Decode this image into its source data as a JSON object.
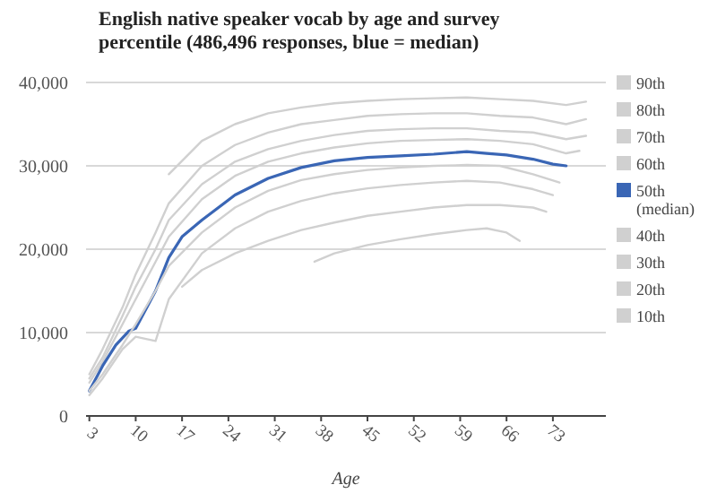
{
  "chart_data": {
    "type": "line",
    "title": "English native speaker vocab by age and survey percentile (486,496 responses, blue = median)",
    "xlabel": "Age",
    "xlim": [
      2.5,
      81
    ],
    "xticks": [
      3,
      10,
      17,
      24,
      31,
      38,
      45,
      52,
      59,
      66,
      73
    ],
    "ylim": [
      0,
      40000
    ],
    "yticks": [
      0,
      {
        "value": 10000,
        "label": "10,000"
      },
      {
        "value": 20000,
        "label": "20,000"
      },
      {
        "value": 30000,
        "label": "30,000"
      },
      {
        "value": 40000,
        "label": "40,000"
      }
    ],
    "grid": "y",
    "legend": "right",
    "line_style": "solid",
    "marker": "none",
    "series": [
      {
        "name": "90th",
        "color": "#d0d0d0",
        "x": [
          15,
          20,
          25,
          30,
          35,
          40,
          45,
          50,
          55,
          60,
          65,
          70,
          75,
          78
        ],
        "values": [
          29000,
          33000,
          35000,
          36300,
          37000,
          37500,
          37800,
          38000,
          38100,
          38200,
          38000,
          37800,
          37300,
          37700
        ]
      },
      {
        "name": "80th",
        "color": "#d0d0d0",
        "x": [
          3,
          5,
          8,
          10,
          13,
          15,
          20,
          25,
          30,
          35,
          40,
          45,
          50,
          55,
          60,
          65,
          70,
          75,
          78
        ],
        "values": [
          5000,
          8000,
          13000,
          17000,
          22000,
          25500,
          30000,
          32500,
          34000,
          35000,
          35500,
          36000,
          36200,
          36300,
          36300,
          36000,
          35800,
          35000,
          35600
        ]
      },
      {
        "name": "70th",
        "color": "#d0d0d0",
        "x": [
          3,
          5,
          8,
          10,
          13,
          15,
          20,
          25,
          30,
          35,
          40,
          45,
          50,
          55,
          60,
          65,
          70,
          75,
          78
        ],
        "values": [
          4500,
          7000,
          12000,
          15500,
          20000,
          23500,
          27800,
          30500,
          32000,
          33000,
          33700,
          34200,
          34400,
          34500,
          34500,
          34200,
          34000,
          33200,
          33600
        ]
      },
      {
        "name": "60th",
        "color": "#d0d0d0",
        "x": [
          3,
          5,
          8,
          10,
          13,
          15,
          20,
          25,
          30,
          35,
          40,
          45,
          50,
          55,
          60,
          65,
          70,
          75,
          77
        ],
        "values": [
          4000,
          6500,
          11000,
          14000,
          18500,
          21500,
          26000,
          28800,
          30500,
          31500,
          32200,
          32700,
          33000,
          33100,
          33200,
          33000,
          32600,
          31500,
          31800
        ]
      },
      {
        "name": "50th (median)",
        "color": "#3a66b5",
        "x": [
          3,
          5,
          7,
          9,
          10,
          12,
          13,
          15,
          17,
          20,
          25,
          30,
          35,
          40,
          45,
          50,
          55,
          60,
          63,
          66,
          70,
          73,
          75
        ],
        "values": [
          3000,
          6000,
          8500,
          10200,
          10500,
          13500,
          15000,
          19000,
          21500,
          23500,
          26500,
          28500,
          29800,
          30600,
          31000,
          31200,
          31400,
          31700,
          31500,
          31300,
          30800,
          30200,
          30000
        ]
      },
      {
        "name": "40th",
        "color": "#d0d0d0",
        "x": [
          3,
          5,
          8,
          10,
          13,
          15,
          20,
          25,
          30,
          35,
          40,
          45,
          50,
          55,
          60,
          65,
          70,
          74
        ],
        "values": [
          3000,
          5000,
          8500,
          11000,
          15000,
          18000,
          22000,
          25000,
          27000,
          28300,
          29000,
          29500,
          29800,
          30000,
          30100,
          30000,
          29000,
          28000
        ]
      },
      {
        "name": "30th",
        "color": "#d0d0d0",
        "x": [
          3,
          5,
          8,
          10,
          13,
          15,
          20,
          25,
          30,
          35,
          40,
          45,
          50,
          55,
          60,
          65,
          70,
          73
        ],
        "values": [
          2500,
          4500,
          8000,
          9500,
          9000,
          14000,
          19500,
          22500,
          24500,
          25800,
          26700,
          27300,
          27700,
          28000,
          28200,
          28000,
          27200,
          26500
        ]
      },
      {
        "name": "20th",
        "color": "#d0d0d0",
        "x": [
          17,
          20,
          25,
          30,
          35,
          40,
          45,
          50,
          55,
          60,
          65,
          70,
          72
        ],
        "values": [
          15500,
          17500,
          19500,
          21000,
          22300,
          23200,
          24000,
          24500,
          25000,
          25300,
          25300,
          25000,
          24500
        ]
      },
      {
        "name": "10th",
        "color": "#d0d0d0",
        "x": [
          37,
          40,
          45,
          50,
          55,
          60,
          63,
          66,
          68
        ],
        "values": [
          18500,
          19500,
          20500,
          21200,
          21800,
          22300,
          22500,
          22000,
          21000
        ]
      }
    ]
  }
}
